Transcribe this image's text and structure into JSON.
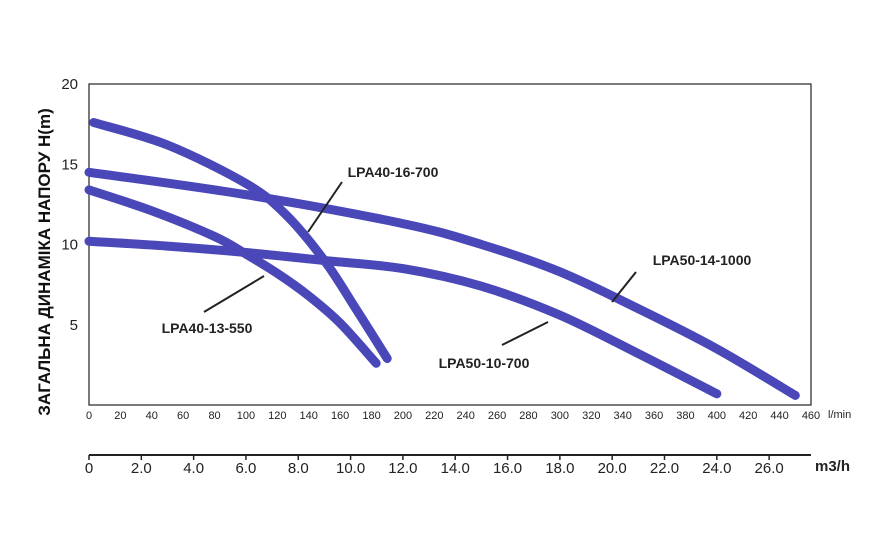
{
  "chart_data": {
    "type": "line",
    "title": "",
    "ylabel": "ЗАГАЛЬНА ДИНАМІКА НАПОРУ H(m)",
    "xlabel": "l/min",
    "x2label": "m3/h",
    "ylim": [
      0,
      20
    ],
    "xlim": [
      0,
      460
    ],
    "x2lim": [
      0,
      27.6
    ],
    "y_ticks": [
      "5",
      "10",
      "15",
      "20"
    ],
    "x_ticks": [
      "0",
      "20",
      "40",
      "60",
      "80",
      "100",
      "120",
      "140",
      "160",
      "180",
      "200",
      "220",
      "240",
      "260",
      "280",
      "300",
      "320",
      "340",
      "360",
      "380",
      "400",
      "420",
      "440",
      "460"
    ],
    "x2_ticks": [
      "0",
      "2.0",
      "4.0",
      "6.0",
      "8.0",
      "10.0",
      "12.0",
      "14.0",
      "16.0",
      "18.0",
      "20.0",
      "22.0",
      "24.0",
      "26.0"
    ],
    "series": [
      {
        "name": "LPA40-16-700",
        "label": "LPA40-16-700",
        "color": "#4a48b8",
        "x": [
          3,
          50,
          100,
          125,
          150,
          170,
          190
        ],
        "y": [
          17.6,
          16.2,
          13.8,
          11.9,
          9.0,
          6.0,
          2.9
        ]
      },
      {
        "name": "LPA40-13-550",
        "label": "LPA40-13-550",
        "color": "#4a48b8",
        "x": [
          0,
          40,
          80,
          100,
          120,
          140,
          160,
          183
        ],
        "y": [
          13.4,
          12.1,
          10.5,
          9.4,
          8.2,
          6.8,
          5.1,
          2.6
        ]
      },
      {
        "name": "LPA50-14-1000",
        "label": "LPA50-14-1000",
        "color": "#4a48b8",
        "x": [
          0,
          100,
          200,
          250,
          300,
          350,
          400,
          450
        ],
        "y": [
          14.5,
          13.1,
          11.3,
          10.0,
          8.3,
          6.0,
          3.5,
          0.6
        ]
      },
      {
        "name": "LPA50-10-700",
        "label": "LPA50-10-700",
        "color": "#4a48b8",
        "x": [
          0,
          50,
          100,
          150,
          200,
          250,
          300,
          350,
          400
        ],
        "y": [
          10.2,
          9.9,
          9.5,
          9.0,
          8.5,
          7.4,
          5.6,
          3.2,
          0.7
        ]
      }
    ],
    "grid": false
  }
}
